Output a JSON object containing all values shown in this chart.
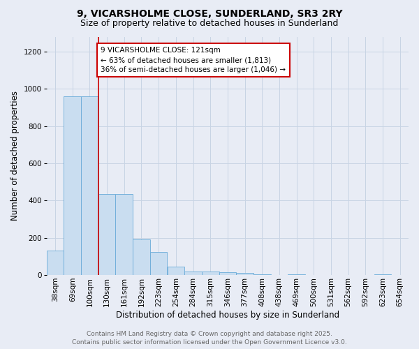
{
  "title_line1": "9, VICARSHOLME CLOSE, SUNDERLAND, SR3 2RY",
  "title_line2": "Size of property relative to detached houses in Sunderland",
  "xlabel": "Distribution of detached houses by size in Sunderland",
  "ylabel": "Number of detached properties",
  "bin_labels": [
    "38sqm",
    "69sqm",
    "100sqm",
    "130sqm",
    "161sqm",
    "192sqm",
    "223sqm",
    "254sqm",
    "284sqm",
    "315sqm",
    "346sqm",
    "377sqm",
    "408sqm",
    "438sqm",
    "469sqm",
    "500sqm",
    "531sqm",
    "562sqm",
    "592sqm",
    "623sqm",
    "654sqm"
  ],
  "bar_heights": [
    130,
    960,
    960,
    435,
    435,
    190,
    125,
    45,
    18,
    18,
    15,
    10,
    5,
    0,
    5,
    0,
    0,
    0,
    0,
    5,
    0
  ],
  "bar_color": "#c9ddf0",
  "bar_edgecolor": "#6aabd8",
  "grid_color": "#c8d4e4",
  "background_color": "#e8ecf5",
  "red_line_x": 3,
  "red_line_color": "#cc0000",
  "annotation_text": "9 VICARSHOLME CLOSE: 121sqm\n← 63% of detached houses are smaller (1,813)\n36% of semi-detached houses are larger (1,046) →",
  "annotation_box_facecolor": "#ffffff",
  "annotation_box_edgecolor": "#cc0000",
  "footer_text": "Contains HM Land Registry data © Crown copyright and database right 2025.\nContains public sector information licensed under the Open Government Licence v3.0.",
  "ylim": [
    0,
    1280
  ],
  "yticks": [
    0,
    200,
    400,
    600,
    800,
    1000,
    1200
  ],
  "title_fontsize": 10,
  "subtitle_fontsize": 9,
  "axis_label_fontsize": 8.5,
  "tick_fontsize": 7.5,
  "annotation_fontsize": 7.5,
  "footer_fontsize": 6.5
}
